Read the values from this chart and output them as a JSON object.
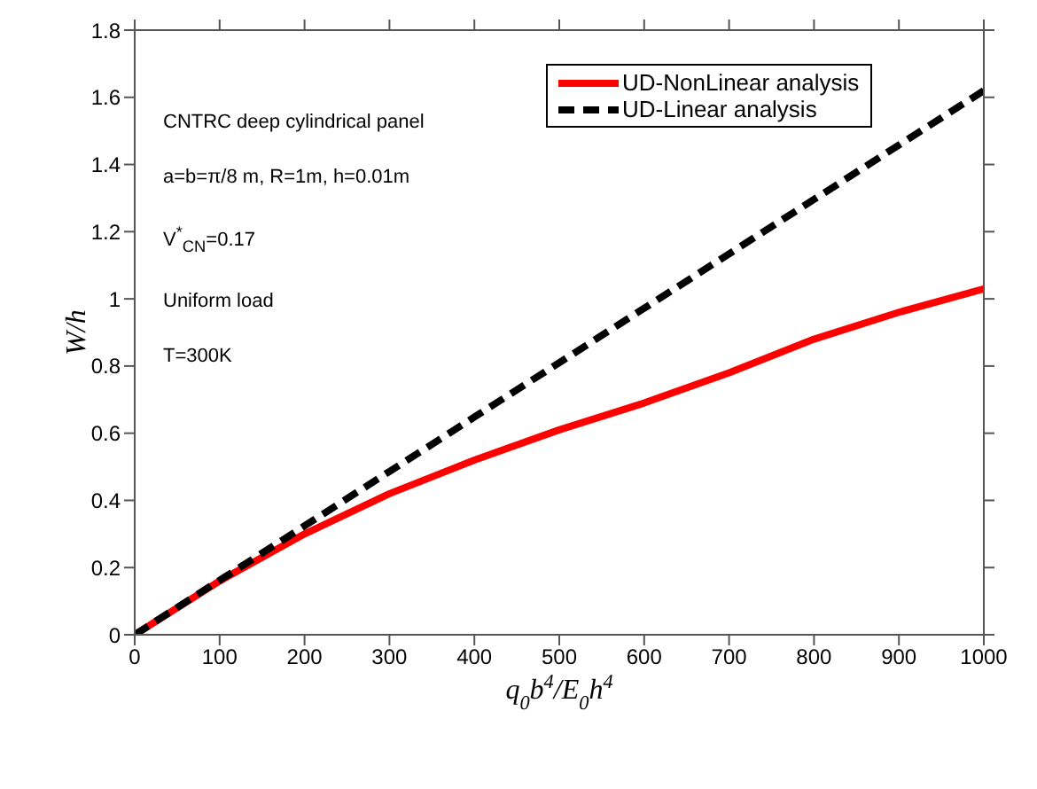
{
  "chart_data": {
    "type": "line",
    "xlabel": "q$_{0}$b$^{4}$/E$_{0}$h$^{4}$",
    "ylabel": "W/h",
    "x": [
      0,
      100,
      200,
      300,
      400,
      500,
      600,
      700,
      800,
      900,
      1000
    ],
    "series": [
      {
        "name": "UD-NonLinear analysis",
        "color": "#ff0000",
        "line_style": "solid",
        "values": [
          0,
          0.16,
          0.3,
          0.42,
          0.52,
          0.61,
          0.69,
          0.78,
          0.88,
          0.96,
          1.03
        ]
      },
      {
        "name": "UD-Linear analysis",
        "color": "#000000",
        "line_style": "dashed",
        "values": [
          0,
          0.162,
          0.324,
          0.486,
          0.648,
          0.81,
          0.972,
          1.134,
          1.296,
          1.458,
          1.62
        ]
      }
    ],
    "xlim": [
      0,
      1000
    ],
    "xticks": [
      0,
      100,
      200,
      300,
      400,
      500,
      600,
      700,
      800,
      900,
      1000
    ],
    "ylim": [
      0,
      1.8
    ],
    "yticks": [
      0,
      0.2,
      0.4,
      0.6,
      0.8,
      1,
      1.2,
      1.4,
      1.6,
      1.8
    ],
    "grid": false,
    "legend": "top right",
    "marker": "none",
    "annotations": [
      "CNTRC deep cylindrical panel",
      "a=b=π/8 m, R=1m, h=0.01m",
      "V$^{*}$$_{CN}$=0.17",
      "Uniform load",
      "T=300K"
    ]
  }
}
